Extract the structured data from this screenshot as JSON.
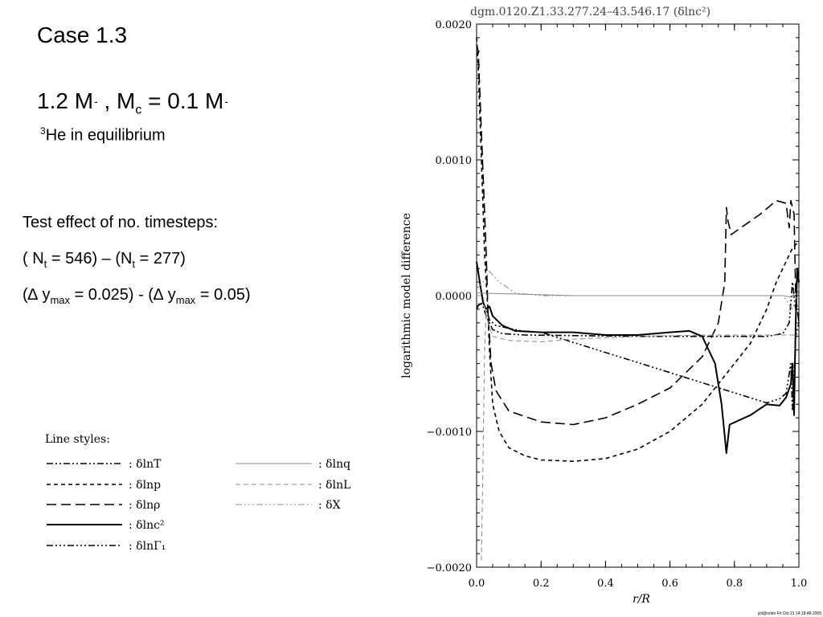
{
  "slide": {
    "title": "Case 1.3",
    "mass_prefix": "1.2 M",
    "mass_sun1": "-",
    "mass_mid": " , M",
    "mass_sub": "c",
    "mass_eq": " = 0.1 M",
    "mass_sun2": "-",
    "he_sup": "3",
    "he_text": "He in equilibrium",
    "test_label": "Test effect of no. timesteps:",
    "nt_a": "( N",
    "nt_sub1": "t",
    "nt_b": " = 546) – (N",
    "nt_sub2": "t",
    "nt_c": " = 277)",
    "dy_a": "(∆ y",
    "dy_sub1": "max",
    "dy_b": " = 0.025) - (∆ y",
    "dy_sub2": "max",
    "dy_c": " = 0.05)"
  },
  "legend": {
    "title": "Line styles:",
    "items": [
      {
        "label": ": δlnT",
        "dash": "8,3,2,3,2,3",
        "width": 1.6,
        "color": "#000000"
      },
      {
        "label": ": δlnp",
        "dash": "5,4",
        "width": 1.6,
        "color": "#000000"
      },
      {
        "label": ": δlnρ",
        "dash": "12,6",
        "width": 1.6,
        "color": "#000000"
      },
      {
        "label": ": δlnc²",
        "dash": "",
        "width": 2,
        "color": "#000000"
      },
      {
        "label": ": δlnΓ₁",
        "dash": "8,3,2,3,2,3,2,3",
        "width": 1.6,
        "color": "#000000"
      },
      {
        "label": ": δlnq",
        "dash": "",
        "width": 1,
        "color": "#888888"
      },
      {
        "label": ": δlnL",
        "dash": "6,4",
        "width": 1,
        "color": "#888888"
      },
      {
        "label": ": δX",
        "dash": "8,3,2,3,2,3,2,3",
        "width": 1,
        "color": "#888888"
      }
    ]
  },
  "footer_stamp": "jcd@orien Fri Oct 21 14:18:48 2005",
  "chart_data": {
    "type": "line",
    "title": "dgm.0120.Z1.33.277.24–43.546.17   (δlnc²)",
    "xlabel": "r/R",
    "ylabel": "logarithmic model difference",
    "xlim": [
      0.0,
      1.0
    ],
    "ylim": [
      -0.002,
      0.002
    ],
    "x_ticks": [
      "0.0",
      "0.2",
      "0.4",
      "0.6",
      "0.8",
      "1.0"
    ],
    "x_tick_values": [
      0.0,
      0.2,
      0.4,
      0.6,
      0.8,
      1.0
    ],
    "y_ticks": [
      "−0.0020",
      "−0.0010",
      "0.0000",
      "0.0010",
      "0.0020"
    ],
    "y_tick_values": [
      -0.002,
      -0.001,
      0.0,
      0.001,
      0.002
    ],
    "series": [
      {
        "name": "δlnc²",
        "dash": "",
        "width": 2,
        "color": "#000000",
        "points": [
          [
            0.0,
            0.00025
          ],
          [
            0.01,
            0.0001
          ],
          [
            0.02,
            -5e-05
          ],
          [
            0.03,
            -0.0001
          ],
          [
            0.04,
            -8e-05
          ],
          [
            0.05,
            -0.00015
          ],
          [
            0.08,
            -0.00022
          ],
          [
            0.12,
            -0.00026
          ],
          [
            0.2,
            -0.00027
          ],
          [
            0.3,
            -0.00027
          ],
          [
            0.4,
            -0.00029
          ],
          [
            0.5,
            -0.00029
          ],
          [
            0.6,
            -0.00027
          ],
          [
            0.66,
            -0.00026
          ],
          [
            0.7,
            -0.0003
          ],
          [
            0.74,
            -0.0005
          ],
          [
            0.76,
            -0.0008
          ],
          [
            0.775,
            -0.00116
          ],
          [
            0.785,
            -0.00095
          ],
          [
            0.85,
            -0.00088
          ],
          [
            0.9,
            -0.0008
          ],
          [
            0.94,
            -0.00081
          ],
          [
            0.96,
            -0.00075
          ],
          [
            0.975,
            -0.00065
          ],
          [
            0.98,
            -0.0005
          ],
          [
            0.985,
            -0.00088
          ],
          [
            0.99,
            -0.0002
          ],
          [
            0.995,
            0.0002
          ],
          [
            1.0,
            0.0001
          ]
        ]
      },
      {
        "name": "δlnp",
        "dash": "5,4",
        "width": 1.6,
        "color": "#000000",
        "points": [
          [
            0.0,
            0.0019
          ],
          [
            0.005,
            0.0017
          ],
          [
            0.015,
            0.001
          ],
          [
            0.025,
            0.0003
          ],
          [
            0.035,
            -0.0001
          ],
          [
            0.04,
            -0.0004
          ],
          [
            0.05,
            -0.0008
          ],
          [
            0.07,
            -0.001
          ],
          [
            0.1,
            -0.00112
          ],
          [
            0.15,
            -0.00118
          ],
          [
            0.2,
            -0.00121
          ],
          [
            0.3,
            -0.00122
          ],
          [
            0.4,
            -0.0012
          ],
          [
            0.5,
            -0.00113
          ],
          [
            0.6,
            -0.001
          ],
          [
            0.7,
            -0.0008
          ],
          [
            0.8,
            -0.0005
          ],
          [
            0.85,
            -0.00035
          ],
          [
            0.9,
            -0.0001
          ],
          [
            0.93,
            0.0001
          ],
          [
            0.96,
            0.00025
          ],
          [
            0.98,
            0.00035
          ],
          [
            1.0,
            0.0004
          ]
        ]
      },
      {
        "name": "δlnρ",
        "dash": "12,6",
        "width": 1.6,
        "color": "#000000",
        "points": [
          [
            0.0,
            0.00185
          ],
          [
            0.005,
            0.0018
          ],
          [
            0.015,
            0.0012
          ],
          [
            0.025,
            0.0006
          ],
          [
            0.03,
            0.0003
          ],
          [
            0.035,
            -0.0001
          ],
          [
            0.045,
            -0.0005
          ],
          [
            0.06,
            -0.0007
          ],
          [
            0.1,
            -0.00085
          ],
          [
            0.2,
            -0.00093
          ],
          [
            0.3,
            -0.00095
          ],
          [
            0.4,
            -0.0009
          ],
          [
            0.5,
            -0.0008
          ],
          [
            0.6,
            -0.00068
          ],
          [
            0.7,
            -0.00045
          ],
          [
            0.75,
            -0.0002
          ],
          [
            0.77,
            0.0001
          ],
          [
            0.775,
            0.00065
          ],
          [
            0.78,
            0.00055
          ],
          [
            0.79,
            0.00045
          ],
          [
            0.82,
            0.0005
          ],
          [
            0.88,
            0.0006
          ],
          [
            0.93,
            0.0007
          ],
          [
            0.96,
            0.00068
          ],
          [
            0.97,
            0.0005
          ],
          [
            0.975,
            0.0007
          ],
          [
            0.985,
            0.0006
          ],
          [
            0.99,
            0.0
          ],
          [
            1.0,
            -0.0002
          ]
        ]
      },
      {
        "name": "δlnT",
        "dash": "8,3,2,3,2,3",
        "width": 1.6,
        "color": "#000000",
        "points": [
          [
            0.0,
            -0.0001
          ],
          [
            0.01,
            -5e-05
          ],
          [
            0.02,
            -8e-05
          ],
          [
            0.03,
            -0.00015
          ],
          [
            0.05,
            -0.00025
          ],
          [
            0.08,
            -0.00028
          ],
          [
            0.15,
            -0.00029
          ],
          [
            0.5,
            -0.0003
          ],
          [
            0.7,
            -0.0003
          ],
          [
            0.78,
            -0.0003
          ],
          [
            0.8,
            -0.0003
          ],
          [
            0.9,
            -0.0003
          ],
          [
            0.95,
            -0.00028
          ],
          [
            0.97,
            -0.0002
          ],
          [
            0.98,
            0.0001
          ],
          [
            0.99,
            -0.0001
          ],
          [
            1.0,
            -0.0001
          ]
        ]
      },
      {
        "name": "δlnΓ₁",
        "dash": "8,3,2,3,2,3,2,3",
        "width": 1.6,
        "color": "#000000",
        "points": [
          [
            0.0,
            -8e-05
          ],
          [
            0.02,
            -5e-05
          ],
          [
            0.03,
            -0.0001
          ],
          [
            0.04,
            -0.00018
          ],
          [
            0.06,
            -0.00022
          ],
          [
            0.1,
            -0.00024
          ],
          [
            0.14,
            -0.00026
          ],
          [
            0.2,
            -0.00027
          ],
          [
            0.9,
            -0.00079
          ],
          [
            0.94,
            -0.00076
          ],
          [
            0.96,
            -0.00072
          ],
          [
            0.975,
            -0.0005
          ],
          [
            0.98,
            -0.00085
          ],
          [
            0.99,
            -0.0003
          ],
          [
            1.0,
            -0.0002
          ]
        ]
      },
      {
        "name": "δlnq",
        "dash": "",
        "width": 1,
        "color": "#888888",
        "points": [
          [
            0.0,
            2e-05
          ],
          [
            0.3,
            0.0
          ],
          [
            0.6,
            0.0
          ],
          [
            0.8,
            0.0
          ],
          [
            0.95,
            0.0
          ],
          [
            1.0,
            -2e-05
          ]
        ]
      },
      {
        "name": "δlnL",
        "dash": "6,4",
        "width": 1,
        "color": "#888888",
        "points": [
          [
            0.0,
            0.0
          ],
          [
            0.02,
            0.0
          ],
          [
            0.03,
            -0.00015
          ],
          [
            0.05,
            -0.0003
          ],
          [
            0.1,
            -0.00033
          ],
          [
            0.2,
            -0.00034
          ],
          [
            0.3,
            -0.00032
          ],
          [
            0.5,
            -0.0003
          ],
          [
            0.7,
            -0.00029
          ],
          [
            0.9,
            -0.00029
          ],
          [
            1.0,
            -0.00029
          ]
        ]
      },
      {
        "name": "δX",
        "dash": "8,3,2,3,2,3,2,3",
        "width": 1,
        "color": "#888888",
        "points": [
          [
            0.0,
            5e-05
          ],
          [
            0.02,
            0.0001
          ],
          [
            0.04,
            0.00018
          ],
          [
            0.07,
            0.0001
          ],
          [
            0.12,
            2e-05
          ],
          [
            0.2,
            0.0
          ],
          [
            0.8,
            0.0
          ],
          [
            0.95,
            0.0
          ],
          [
            0.98,
            -0.0001
          ],
          [
            1.0,
            5e-05
          ]
        ]
      },
      {
        "name": "δlnL (core)",
        "dash": "6,4",
        "width": 1,
        "color": "#888888",
        "points": [
          [
            0.015,
            -0.00195
          ],
          [
            0.02,
            -0.0012
          ],
          [
            0.025,
            -0.0004
          ],
          [
            0.03,
            -0.0001
          ]
        ]
      }
    ]
  }
}
